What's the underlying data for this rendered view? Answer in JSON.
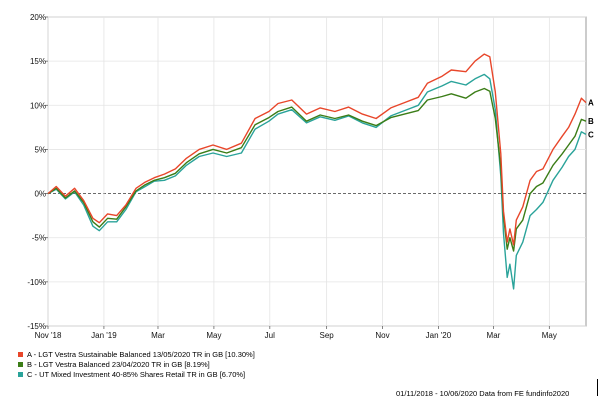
{
  "chart_data": {
    "type": "line",
    "ylim": [
      -15,
      20
    ],
    "yticks": [
      20,
      15,
      10,
      5,
      0,
      -5,
      -10,
      -15
    ],
    "ytick_labels": [
      "20%",
      "15%",
      "10%",
      "5%",
      "0%",
      "-5%",
      "-10%",
      "-15%"
    ],
    "xlim": [
      "2018-11-01",
      "2020-06-10"
    ],
    "xticks": [
      "2018-11-01",
      "2019-01-01",
      "2019-03-01",
      "2019-05-01",
      "2019-07-01",
      "2019-09-01",
      "2019-11-01",
      "2020-01-01",
      "2020-03-01",
      "2020-05-01"
    ],
    "xtick_labels": [
      "Nov '18",
      "Jan '19",
      "Mar",
      "May",
      "Jul",
      "Sep",
      "Nov",
      "Jan '20",
      "Mar",
      "May"
    ],
    "grid": true,
    "zero_line": "dashed",
    "series": [
      {
        "name": "A - LGT Vestra Sustainable Balanced 13/05/2020 TR in GB [10.30%]",
        "end_label": "A",
        "color": "#e8462a",
        "points": [
          [
            "2018-11-01",
            0
          ],
          [
            "2018-11-10",
            0.8
          ],
          [
            "2018-11-20",
            -0.3
          ],
          [
            "2018-11-30",
            0.6
          ],
          [
            "2018-12-10",
            -0.8
          ],
          [
            "2018-12-20",
            -2.8
          ],
          [
            "2018-12-27",
            -3.3
          ],
          [
            "2019-01-05",
            -2.3
          ],
          [
            "2019-01-15",
            -2.5
          ],
          [
            "2019-01-25",
            -1.3
          ],
          [
            "2019-02-05",
            0.6
          ],
          [
            "2019-02-15",
            1.3
          ],
          [
            "2019-02-25",
            1.8
          ],
          [
            "2019-03-08",
            2.2
          ],
          [
            "2019-03-20",
            2.8
          ],
          [
            "2019-04-01",
            4.0
          ],
          [
            "2019-04-15",
            5.0
          ],
          [
            "2019-04-30",
            5.5
          ],
          [
            "2019-05-15",
            5.0
          ],
          [
            "2019-05-31",
            5.7
          ],
          [
            "2019-06-15",
            8.5
          ],
          [
            "2019-06-30",
            9.3
          ],
          [
            "2019-07-10",
            10.2
          ],
          [
            "2019-07-25",
            10.6
          ],
          [
            "2019-08-10",
            9.0
          ],
          [
            "2019-08-25",
            9.7
          ],
          [
            "2019-09-10",
            9.3
          ],
          [
            "2019-09-25",
            9.8
          ],
          [
            "2019-10-10",
            9.0
          ],
          [
            "2019-10-25",
            8.5
          ],
          [
            "2019-11-10",
            9.7
          ],
          [
            "2019-11-25",
            10.3
          ],
          [
            "2019-12-10",
            10.9
          ],
          [
            "2019-12-20",
            12.5
          ],
          [
            "2020-01-05",
            13.3
          ],
          [
            "2020-01-15",
            14.0
          ],
          [
            "2020-01-31",
            13.8
          ],
          [
            "2020-02-10",
            15.0
          ],
          [
            "2020-02-20",
            15.8
          ],
          [
            "2020-02-26",
            15.5
          ],
          [
            "2020-03-03",
            11.5
          ],
          [
            "2020-03-09",
            4.5
          ],
          [
            "2020-03-12",
            -2.0
          ],
          [
            "2020-03-16",
            -5.5
          ],
          [
            "2020-03-19",
            -4.0
          ],
          [
            "2020-03-23",
            -5.8
          ],
          [
            "2020-03-26",
            -3.0
          ],
          [
            "2020-04-02",
            -1.5
          ],
          [
            "2020-04-10",
            1.5
          ],
          [
            "2020-04-17",
            2.5
          ],
          [
            "2020-04-24",
            2.8
          ],
          [
            "2020-05-05",
            5.0
          ],
          [
            "2020-05-15",
            6.5
          ],
          [
            "2020-05-22",
            7.5
          ],
          [
            "2020-05-29",
            9.0
          ],
          [
            "2020-06-05",
            10.8
          ],
          [
            "2020-06-10",
            10.3
          ]
        ]
      },
      {
        "name": "B - LGT Vestra Balanced 23/04/2020 TR in GB [8.19%]",
        "end_label": "B",
        "color": "#3b7d17",
        "points": [
          [
            "2018-11-01",
            0
          ],
          [
            "2018-11-10",
            0.6
          ],
          [
            "2018-11-20",
            -0.5
          ],
          [
            "2018-11-30",
            0.3
          ],
          [
            "2018-12-10",
            -1.0
          ],
          [
            "2018-12-20",
            -3.2
          ],
          [
            "2018-12-27",
            -3.8
          ],
          [
            "2019-01-05",
            -2.8
          ],
          [
            "2019-01-15",
            -2.9
          ],
          [
            "2019-01-25",
            -1.5
          ],
          [
            "2019-02-05",
            0.3
          ],
          [
            "2019-02-15",
            1.0
          ],
          [
            "2019-02-25",
            1.5
          ],
          [
            "2019-03-08",
            1.8
          ],
          [
            "2019-03-20",
            2.3
          ],
          [
            "2019-04-01",
            3.5
          ],
          [
            "2019-04-15",
            4.5
          ],
          [
            "2019-04-30",
            5.0
          ],
          [
            "2019-05-15",
            4.6
          ],
          [
            "2019-05-31",
            5.2
          ],
          [
            "2019-06-15",
            7.8
          ],
          [
            "2019-06-30",
            8.6
          ],
          [
            "2019-07-10",
            9.3
          ],
          [
            "2019-07-25",
            9.8
          ],
          [
            "2019-08-10",
            8.2
          ],
          [
            "2019-08-25",
            8.9
          ],
          [
            "2019-09-10",
            8.5
          ],
          [
            "2019-09-25",
            8.9
          ],
          [
            "2019-10-10",
            8.2
          ],
          [
            "2019-10-25",
            7.7
          ],
          [
            "2019-11-10",
            8.6
          ],
          [
            "2019-11-25",
            9.0
          ],
          [
            "2019-12-10",
            9.4
          ],
          [
            "2019-12-20",
            10.6
          ],
          [
            "2020-01-05",
            11.0
          ],
          [
            "2020-01-15",
            11.3
          ],
          [
            "2020-01-31",
            10.8
          ],
          [
            "2020-02-10",
            11.5
          ],
          [
            "2020-02-20",
            11.9
          ],
          [
            "2020-02-26",
            11.6
          ],
          [
            "2020-03-03",
            8.5
          ],
          [
            "2020-03-09",
            3.0
          ],
          [
            "2020-03-12",
            -2.5
          ],
          [
            "2020-03-16",
            -6.3
          ],
          [
            "2020-03-19",
            -5.0
          ],
          [
            "2020-03-23",
            -6.5
          ],
          [
            "2020-03-26",
            -4.0
          ],
          [
            "2020-04-02",
            -3.0
          ],
          [
            "2020-04-10",
            0.0
          ],
          [
            "2020-04-17",
            0.8
          ],
          [
            "2020-04-24",
            1.2
          ],
          [
            "2020-05-05",
            3.2
          ],
          [
            "2020-05-15",
            4.5
          ],
          [
            "2020-05-22",
            5.5
          ],
          [
            "2020-05-29",
            6.5
          ],
          [
            "2020-06-05",
            8.4
          ],
          [
            "2020-06-10",
            8.2
          ]
        ]
      },
      {
        "name": "C - UT Mixed Investment 40-85% Shares Retail TR in GB [6.70%]",
        "end_label": "C",
        "color": "#2aa39a",
        "points": [
          [
            "2018-11-01",
            0
          ],
          [
            "2018-11-10",
            0.5
          ],
          [
            "2018-11-20",
            -0.6
          ],
          [
            "2018-11-30",
            0.2
          ],
          [
            "2018-12-10",
            -1.3
          ],
          [
            "2018-12-20",
            -3.7
          ],
          [
            "2018-12-27",
            -4.2
          ],
          [
            "2019-01-05",
            -3.2
          ],
          [
            "2019-01-15",
            -3.2
          ],
          [
            "2019-01-25",
            -1.8
          ],
          [
            "2019-02-05",
            0.2
          ],
          [
            "2019-02-15",
            0.8
          ],
          [
            "2019-02-25",
            1.4
          ],
          [
            "2019-03-08",
            1.5
          ],
          [
            "2019-03-20",
            2.0
          ],
          [
            "2019-04-01",
            3.2
          ],
          [
            "2019-04-15",
            4.2
          ],
          [
            "2019-04-30",
            4.6
          ],
          [
            "2019-05-15",
            4.2
          ],
          [
            "2019-05-31",
            4.6
          ],
          [
            "2019-06-15",
            7.3
          ],
          [
            "2019-06-30",
            8.2
          ],
          [
            "2019-07-10",
            9.0
          ],
          [
            "2019-07-25",
            9.5
          ],
          [
            "2019-08-10",
            8.0
          ],
          [
            "2019-08-25",
            8.7
          ],
          [
            "2019-09-10",
            8.3
          ],
          [
            "2019-09-25",
            8.8
          ],
          [
            "2019-10-10",
            8.0
          ],
          [
            "2019-10-25",
            7.5
          ],
          [
            "2019-11-10",
            8.8
          ],
          [
            "2019-11-25",
            9.4
          ],
          [
            "2019-12-10",
            10.0
          ],
          [
            "2019-12-20",
            11.5
          ],
          [
            "2020-01-05",
            12.2
          ],
          [
            "2020-01-15",
            12.7
          ],
          [
            "2020-01-31",
            12.3
          ],
          [
            "2020-02-10",
            13.0
          ],
          [
            "2020-02-20",
            13.5
          ],
          [
            "2020-02-26",
            13.0
          ],
          [
            "2020-03-03",
            9.5
          ],
          [
            "2020-03-09",
            2.0
          ],
          [
            "2020-03-12",
            -4.5
          ],
          [
            "2020-03-16",
            -9.5
          ],
          [
            "2020-03-19",
            -8.0
          ],
          [
            "2020-03-23",
            -10.8
          ],
          [
            "2020-03-26",
            -7.0
          ],
          [
            "2020-04-02",
            -5.5
          ],
          [
            "2020-04-10",
            -2.5
          ],
          [
            "2020-04-17",
            -1.8
          ],
          [
            "2020-04-24",
            -1.0
          ],
          [
            "2020-05-05",
            1.5
          ],
          [
            "2020-05-15",
            3.0
          ],
          [
            "2020-05-22",
            4.2
          ],
          [
            "2020-05-29",
            5.0
          ],
          [
            "2020-06-05",
            7.0
          ],
          [
            "2020-06-10",
            6.7
          ]
        ]
      }
    ]
  },
  "footer": {
    "source": "01/11/2018 - 10/06/2020 Data from FE fundinfo2020"
  }
}
